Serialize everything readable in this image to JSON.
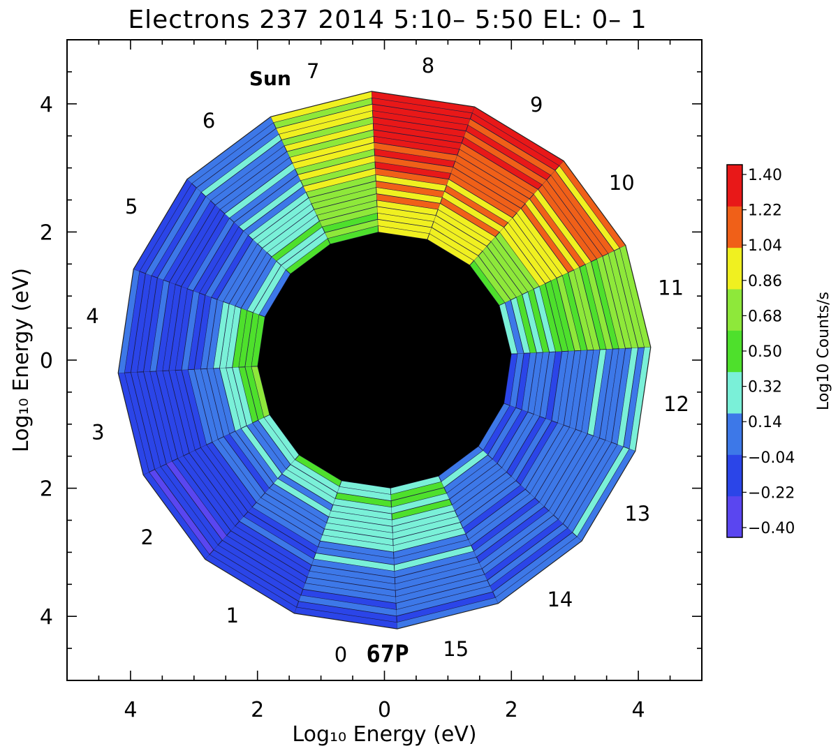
{
  "chart_data": {
    "type": "polar-contour",
    "title": "Electrons 237 2014  5:10– 5:50 EL: 0– 1",
    "xlabel": "Log₁₀ Energy (eV)",
    "ylabel": "Log₁₀ Energy (eV)",
    "xlim": [
      -5,
      5
    ],
    "ylim": [
      -5,
      5
    ],
    "x_ticks": [
      -4,
      -2,
      0,
      2,
      4
    ],
    "x_tick_labels": [
      "4",
      "2",
      "0",
      "2",
      "4"
    ],
    "y_ticks": [
      -4,
      -2,
      0,
      2,
      4
    ],
    "y_tick_labels": [
      "4",
      "2",
      "0",
      "2",
      "4"
    ],
    "inner_radius_log_eV": 2.0,
    "outer_radius_log_eV": 4.2,
    "sectors": 16,
    "sector_labels": [
      "0",
      "1",
      "2",
      "3",
      "4",
      "5",
      "6",
      "7",
      "8",
      "9",
      "10",
      "11",
      "12",
      "13",
      "14",
      "15"
    ],
    "sector_angles_deg": [
      -98.5,
      -121,
      -143.5,
      -166,
      171.5,
      149,
      126.5,
      104,
      81.5,
      59,
      36.5,
      14,
      -8.5,
      -31,
      -53.5,
      -76
    ],
    "sector_label_radius": 4.65,
    "annotations": [
      {
        "text": "Sun",
        "x": -1.8,
        "y": 4.4
      },
      {
        "text": "67P",
        "x": 0.05,
        "y": -4.6
      }
    ],
    "colorbar": {
      "label": "Log10 Counts/s",
      "levels": [
        -0.4,
        -0.22,
        -0.04,
        0.14,
        0.32,
        0.5,
        0.68,
        0.86,
        1.04,
        1.22,
        1.4
      ],
      "tick_labels": [
        "1.40",
        "1.22",
        "1.04",
        "0.86",
        "0.68",
        "0.50",
        "0.32",
        "0.14",
        "−0.04",
        "−0.22",
        "−0.40"
      ],
      "colors": [
        "#5a46f0",
        "#2b45e8",
        "#3d78e8",
        "#7af0d8",
        "#4ee02c",
        "#8ee83a",
        "#f0f020",
        "#f06018",
        "#e81818"
      ]
    },
    "sector_levels": [
      {
        "sector": "0",
        "inner": 0.32,
        "mid": 0.14,
        "outer": -0.1
      },
      {
        "sector": "1",
        "inner": 0.32,
        "mid": -0.04,
        "outer": -0.15
      },
      {
        "sector": "2",
        "inner": 0.2,
        "mid": -0.1,
        "outer": -0.22
      },
      {
        "sector": "3",
        "inner": 0.5,
        "mid": -0.1,
        "outer": -0.15
      },
      {
        "sector": "4",
        "inner": 0.5,
        "mid": -0.1,
        "outer": -0.1
      },
      {
        "sector": "5",
        "inner": 0.2,
        "mid": -0.1,
        "outer": -0.05
      },
      {
        "sector": "6",
        "inner": 0.32,
        "mid": 0.14,
        "outer": 0.05
      },
      {
        "sector": "7",
        "inner": 0.5,
        "mid": 0.68,
        "outer": 0.7
      },
      {
        "sector": "8",
        "inner": 0.68,
        "mid": 1.0,
        "outer": 1.2
      },
      {
        "sector": "9",
        "inner": 0.68,
        "mid": 0.9,
        "outer": 1.1
      },
      {
        "sector": "10",
        "inner": 0.5,
        "mid": 0.8,
        "outer": 0.95
      },
      {
        "sector": "11",
        "inner": 0.14,
        "mid": 0.5,
        "outer": 0.6
      },
      {
        "sector": "12",
        "inner": -0.05,
        "mid": 0.05,
        "outer": 0.14
      },
      {
        "sector": "13",
        "inner": -0.05,
        "mid": 0.0,
        "outer": 0.14
      },
      {
        "sector": "14",
        "inner": 0.14,
        "mid": -0.04,
        "outer": -0.04
      },
      {
        "sector": "15",
        "inner": 0.4,
        "mid": 0.14,
        "outer": -0.04
      }
    ]
  }
}
